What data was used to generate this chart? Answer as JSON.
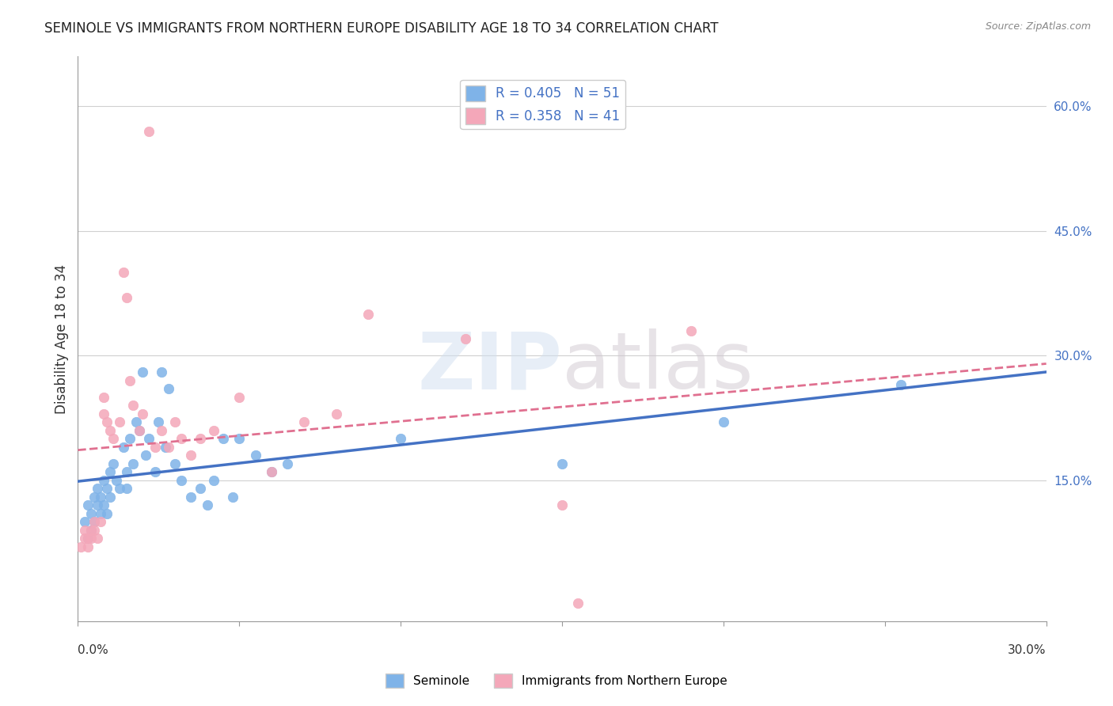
{
  "title": "SEMINOLE VS IMMIGRANTS FROM NORTHERN EUROPE DISABILITY AGE 18 TO 34 CORRELATION CHART",
  "source": "Source: ZipAtlas.com",
  "ylabel": "Disability Age 18 to 34",
  "right_yticks": [
    "60.0%",
    "45.0%",
    "30.0%",
    "15.0%"
  ],
  "right_ytick_vals": [
    0.6,
    0.45,
    0.3,
    0.15
  ],
  "xmin": 0.0,
  "xmax": 0.3,
  "ymin": -0.02,
  "ymax": 0.66,
  "legend1_label": "R = 0.405   N = 51",
  "legend2_label": "R = 0.358   N = 41",
  "blue_color": "#7fb3e8",
  "pink_color": "#f4a7b9",
  "blue_line_color": "#4472c4",
  "pink_line_color": "#e07090",
  "seminole_x": [
    0.002,
    0.003,
    0.003,
    0.004,
    0.004,
    0.005,
    0.005,
    0.006,
    0.006,
    0.007,
    0.007,
    0.008,
    0.008,
    0.009,
    0.009,
    0.01,
    0.01,
    0.011,
    0.012,
    0.013,
    0.014,
    0.015,
    0.015,
    0.016,
    0.017,
    0.018,
    0.019,
    0.02,
    0.021,
    0.022,
    0.024,
    0.025,
    0.026,
    0.027,
    0.028,
    0.03,
    0.032,
    0.035,
    0.038,
    0.04,
    0.042,
    0.045,
    0.048,
    0.05,
    0.055,
    0.06,
    0.065,
    0.1,
    0.15,
    0.2,
    0.255
  ],
  "seminole_y": [
    0.1,
    0.12,
    0.08,
    0.11,
    0.09,
    0.13,
    0.1,
    0.12,
    0.14,
    0.11,
    0.13,
    0.12,
    0.15,
    0.11,
    0.14,
    0.13,
    0.16,
    0.17,
    0.15,
    0.14,
    0.19,
    0.16,
    0.14,
    0.2,
    0.17,
    0.22,
    0.21,
    0.28,
    0.18,
    0.2,
    0.16,
    0.22,
    0.28,
    0.19,
    0.26,
    0.17,
    0.15,
    0.13,
    0.14,
    0.12,
    0.15,
    0.2,
    0.13,
    0.2,
    0.18,
    0.16,
    0.17,
    0.2,
    0.17,
    0.22,
    0.265
  ],
  "northern_europe_x": [
    0.001,
    0.002,
    0.002,
    0.003,
    0.003,
    0.004,
    0.004,
    0.005,
    0.005,
    0.006,
    0.007,
    0.008,
    0.008,
    0.009,
    0.01,
    0.011,
    0.013,
    0.014,
    0.015,
    0.016,
    0.017,
    0.019,
    0.02,
    0.022,
    0.024,
    0.026,
    0.028,
    0.03,
    0.032,
    0.035,
    0.038,
    0.042,
    0.05,
    0.06,
    0.07,
    0.08,
    0.09,
    0.12,
    0.15,
    0.19,
    0.155
  ],
  "northern_europe_y": [
    0.07,
    0.08,
    0.09,
    0.07,
    0.08,
    0.09,
    0.08,
    0.1,
    0.09,
    0.08,
    0.1,
    0.23,
    0.25,
    0.22,
    0.21,
    0.2,
    0.22,
    0.4,
    0.37,
    0.27,
    0.24,
    0.21,
    0.23,
    0.57,
    0.19,
    0.21,
    0.19,
    0.22,
    0.2,
    0.18,
    0.2,
    0.21,
    0.25,
    0.16,
    0.22,
    0.23,
    0.35,
    0.32,
    0.12,
    0.33,
    0.002
  ]
}
